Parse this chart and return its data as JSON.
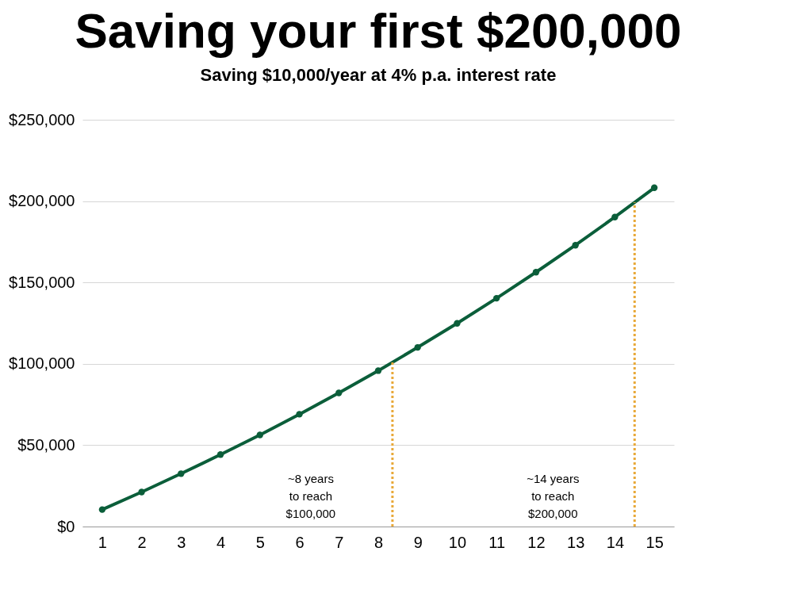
{
  "chart_data": {
    "type": "line",
    "title": "Saving your first $200,000",
    "subtitle": "Saving $10,000/year at 4% p.a. interest rate",
    "x": [
      1,
      2,
      3,
      4,
      5,
      6,
      7,
      8,
      9,
      10,
      11,
      12,
      13,
      14,
      15
    ],
    "series": [
      {
        "color": "#0b5e3a",
        "values": [
          10400,
          21200,
          32500,
          44200,
          56300,
          69000,
          82100,
          95800,
          110100,
          124900,
          140300,
          156300,
          172900,
          190200,
          208200
        ]
      }
    ],
    "xlim": [
      0.5,
      15.5
    ],
    "xticks": [
      1,
      2,
      3,
      4,
      5,
      6,
      7,
      8,
      9,
      10,
      11,
      12,
      13,
      14,
      15
    ],
    "ylim": [
      0,
      250000
    ],
    "yticks": [
      {
        "value": 0,
        "label": "$0"
      },
      {
        "value": 50000,
        "label": "$50,000"
      },
      {
        "value": 100000,
        "label": "$100,000"
      },
      {
        "value": 150000,
        "label": "$150,000"
      },
      {
        "value": 200000,
        "label": "$200,000"
      },
      {
        "value": 250000,
        "label": "$250,000"
      }
    ],
    "grid": "y",
    "marker": "circle",
    "line_style": "solid",
    "ref_lines": [
      {
        "axis": "x",
        "value": 8.36,
        "color": "#e8a838",
        "line_style": "dotted"
      },
      {
        "axis": "x",
        "value": 14.5,
        "color": "#e8a838",
        "line_style": "dotted"
      }
    ],
    "annotations": [
      "~8 years\nto reach\n$100,000",
      "~14 years\nto reach\n$200,000"
    ]
  }
}
